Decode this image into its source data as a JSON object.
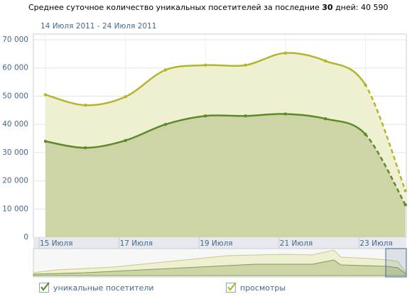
{
  "chart_data": {
    "type": "area",
    "title_prefix": "Среднее суточное количество уникальных посетителей за последние",
    "title_emphasis": "30",
    "title_suffix": "дней: 40 590",
    "subtitle": "14 Июля 2011 - 24 Июля 2011",
    "categories": [
      "15 Июля",
      null,
      "17 Июля",
      null,
      "19 Июля",
      null,
      "21 Июля",
      null,
      "23 Июля",
      null
    ],
    "series": [
      {
        "name": "просмотры",
        "color": "#b3b62c",
        "fill": "#efefd2",
        "values": [
          50500,
          46800,
          49800,
          59300,
          61000,
          61000,
          65300,
          62500,
          54000,
          16500
        ]
      },
      {
        "name": "уникальные посетители",
        "color": "#5b8a27",
        "fill": "#cdd5a6",
        "values": [
          34000,
          31700,
          34300,
          40000,
          43000,
          43000,
          43700,
          42000,
          36500,
          11500
        ]
      }
    ],
    "ylim": [
      0,
      70000
    ],
    "yticks": [
      0,
      {
        "value": 10000,
        "label": "10 000"
      },
      {
        "value": 20000,
        "label": "20 000"
      },
      {
        "value": 30000,
        "label": "30 000"
      },
      {
        "value": 40000,
        "label": "40 000"
      },
      {
        "value": 50000,
        "label": "50 000"
      },
      {
        "value": 60000,
        "label": "60 000"
      },
      {
        "value": 70000,
        "label": "70 000"
      }
    ],
    "grid": true,
    "last_segment_dashed": true
  }
}
